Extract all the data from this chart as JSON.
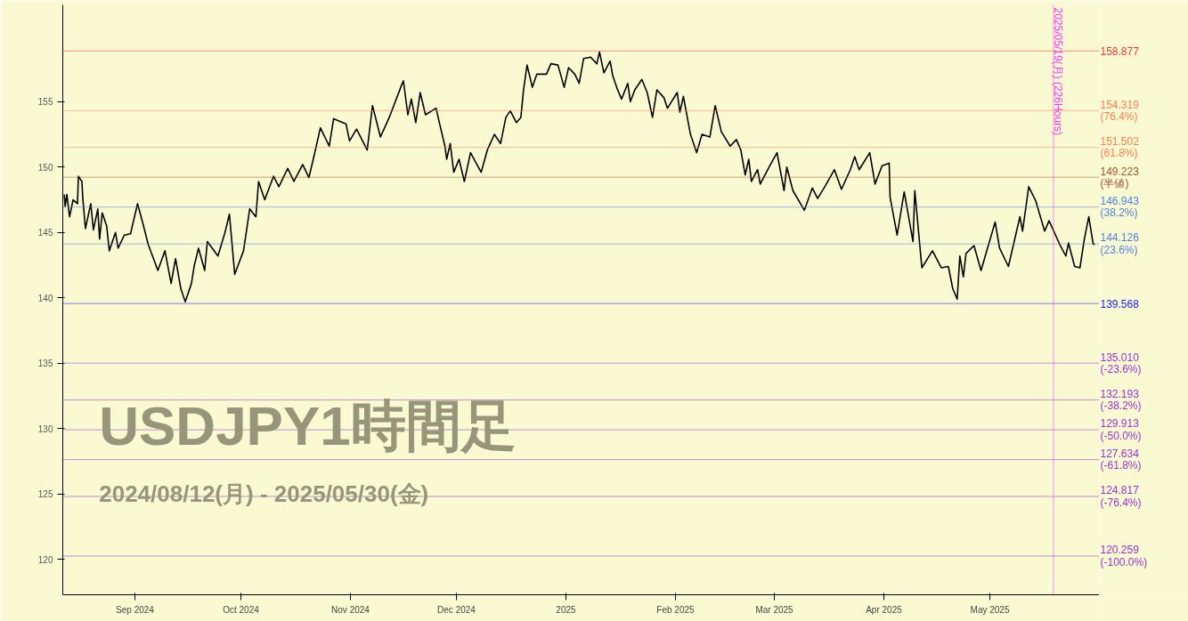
{
  "chart_data": {
    "type": "line",
    "title": "USDJPY1時間足",
    "subtitle": "2024/08/12(月) - 2025/05/30(金)",
    "xlim": [
      "2024-08-11T14:00",
      "2025-06-01T00:00"
    ],
    "ylim": [
      117.3,
      162.4
    ],
    "xticks": [
      {
        "value": "2024-09-01",
        "label": "Sep 2024"
      },
      {
        "value": "2024-10-01",
        "label": "Oct 2024"
      },
      {
        "value": "2024-11-01",
        "label": "Nov 2024"
      },
      {
        "value": "2024-12-01",
        "label": "Dec 2024"
      },
      {
        "value": "2025-01-01",
        "label": "2025"
      },
      {
        "value": "2025-02-01",
        "label": "Feb 2025"
      },
      {
        "value": "2025-03-01",
        "label": "Mar 2025"
      },
      {
        "value": "2025-04-01",
        "label": "Apr 2025"
      },
      {
        "value": "2025-05-01",
        "label": "May 2025"
      }
    ],
    "yticks": [
      120,
      125,
      130,
      135,
      140,
      145,
      150,
      155
    ],
    "x": [
      "2024-08-12T00:00",
      "2024-08-12T06:00",
      "2024-08-12T18:00",
      "2024-08-13T12:00",
      "2024-08-14T12:00",
      "2024-08-15T18:00",
      "2024-08-16T00:00",
      "2024-08-17T00:00",
      "2024-08-17T06:00",
      "2024-08-18T00:00",
      "2024-08-19T12:00",
      "2024-08-20T06:00",
      "2024-08-21T12:00",
      "2024-08-22T00:00",
      "2024-08-22T18:00",
      "2024-08-24T00:00",
      "2024-08-24T18:00",
      "2024-08-26T12:00",
      "2024-08-27T06:00",
      "2024-08-29T00:00",
      "2024-08-30T18:00",
      "2024-09-01T18:00",
      "2024-09-03T06:00",
      "2024-09-04T18:00",
      "2024-09-07T12:00",
      "2024-09-09T12:00",
      "2024-09-11T06:00",
      "2024-09-12T12:00",
      "2024-09-14T00:00",
      "2024-09-15T06:00",
      "2024-09-17T00:00",
      "2024-09-17T18:00",
      "2024-09-19T00:00",
      "2024-09-20T18:00",
      "2024-09-21T12:00",
      "2024-09-24T12:00",
      "2024-09-26T12:00",
      "2024-09-27T18:00",
      "2024-09-29T06:00",
      "2024-10-01T18:00",
      "2024-10-03T12:00",
      "2024-10-05T06:00",
      "2024-10-06T00:00",
      "2024-10-07T18:00",
      "2024-10-10T06:00",
      "2024-10-11T18:00",
      "2024-10-14T06:00",
      "2024-10-16T00:00",
      "2024-10-18T12:00",
      "2024-10-20T06:00",
      "2024-10-21T18:00",
      "2024-10-23T12:00",
      "2024-10-26T00:00",
      "2024-10-27T06:00",
      "2024-10-30T18:00",
      "2024-10-31T18:00",
      "2024-11-02T18:00",
      "2024-11-05T18:00",
      "2024-11-07T06:00",
      "2024-11-09T12:00",
      "2024-11-12T00:00",
      "2024-11-15T06:00",
      "2024-11-16T00:00",
      "2024-11-17T06:00",
      "2024-11-18T06:00",
      "2024-11-19T12:00",
      "2024-11-20T18:00",
      "2024-11-22T06:00",
      "2024-11-25T06:00",
      "2024-11-26T00:00",
      "2024-11-27T18:00",
      "2024-11-28T06:00",
      "2024-11-29T06:00",
      "2024-11-30T06:00",
      "2024-12-01T18:00",
      "2024-12-03T06:00",
      "2024-12-05T00:00",
      "2024-12-08T00:00",
      "2024-12-09T18:00",
      "2024-12-11T18:00",
      "2024-12-13T12:00",
      "2024-12-15T00:00",
      "2024-12-16T06:00",
      "2024-12-18T00:00",
      "2024-12-19T06:00",
      "2024-12-20T00:00",
      "2024-12-21T00:00",
      "2024-12-22T12:00",
      "2024-12-23T18:00",
      "2024-12-26T12:00",
      "2024-12-27T18:00",
      "2024-12-29T18:00",
      "2024-12-31T12:00",
      "2025-01-01T18:00",
      "2025-01-03T12:00",
      "2025-01-04T18:00",
      "2025-01-06T00:00",
      "2025-01-08T00:00",
      "2025-01-09T18:00",
      "2025-01-10T12:00",
      "2025-01-11T18:00",
      "2025-01-13T12:00",
      "2025-01-14T06:00",
      "2025-01-15T12:00",
      "2025-01-16T18:00",
      "2025-01-18T12:00",
      "2025-01-19T06:00",
      "2025-01-20T12:00",
      "2025-01-22T12:00",
      "2025-01-24T00:00",
      "2025-01-25T12:00",
      "2025-01-26T18:00",
      "2025-01-28T18:00",
      "2025-01-29T18:00",
      "2025-02-01T12:00",
      "2025-02-02T06:00",
      "2025-02-03T06:00",
      "2025-02-05T06:00",
      "2025-02-07T00:00",
      "2025-02-08T12:00",
      "2025-02-10T18:00",
      "2025-02-12T06:00",
      "2025-02-14T00:00",
      "2025-02-16T12:00",
      "2025-02-18T06:00",
      "2025-02-19T12:00",
      "2025-02-20T18:00",
      "2025-02-21T18:00",
      "2025-02-22T12:00",
      "2025-02-24T06:00",
      "2025-02-25T00:00",
      "2025-02-27T12:00",
      "2025-03-01T18:00",
      "2025-03-03T18:00",
      "2025-03-04T12:00",
      "2025-03-06T06:00",
      "2025-03-09T12:00",
      "2025-03-11T18:00",
      "2025-03-13T06:00",
      "2025-03-15T12:00",
      "2025-03-18T00:00",
      "2025-03-20T00:00",
      "2025-03-22T12:00",
      "2025-03-23T18:00",
      "2025-03-25T00:00",
      "2025-03-28T00:00",
      "2025-03-29T12:00",
      "2025-03-31T12:00",
      "2025-04-02T12:00",
      "2025-04-02T18:00",
      "2025-04-04T18:00",
      "2025-04-06T18:00",
      "2025-04-09T06:00",
      "2025-04-09T18:00",
      "2025-04-11T18:00",
      "2025-04-14T18:00",
      "2025-04-17T06:00",
      "2025-04-19T06:00",
      "2025-04-20T12:00",
      "2025-04-21T18:00",
      "2025-04-22T12:00",
      "2025-04-23T12:00",
      "2025-04-24T06:00",
      "2025-04-26T12:00",
      "2025-04-28T12:00",
      "2025-05-02T12:00",
      "2025-05-03T18:00",
      "2025-05-06T06:00",
      "2025-05-09T12:00",
      "2025-05-10T06:00",
      "2025-05-12T00:00",
      "2025-05-14T00:00",
      "2025-05-16T12:00",
      "2025-05-17T18:00",
      "2025-05-20T18:00",
      "2025-05-22T12:00",
      "2025-05-23T06:00",
      "2025-05-25T00:00",
      "2025-05-26T12:00",
      "2025-05-27T18:00",
      "2025-05-29T00:00",
      "2025-05-30T06:00",
      "2025-05-30T18:00"
    ],
    "series": [
      {
        "color": "#000000",
        "values": [
          147.9,
          147.0,
          147.9,
          146.2,
          147.5,
          147.2,
          149.3,
          148.9,
          147.6,
          145.3,
          147.2,
          145.2,
          146.8,
          144.5,
          146.5,
          145.5,
          143.6,
          145.0,
          143.8,
          144.8,
          144.9,
          147.2,
          145.7,
          144.1,
          142.1,
          143.6,
          141.1,
          143.0,
          140.7,
          139.7,
          141.1,
          142.4,
          143.8,
          142.1,
          144.3,
          143.2,
          145.0,
          146.4,
          141.8,
          143.6,
          146.8,
          146.2,
          148.9,
          147.5,
          149.3,
          148.5,
          149.9,
          148.9,
          150.2,
          149.2,
          150.9,
          153.0,
          151.6,
          153.7,
          153.3,
          152.0,
          152.9,
          151.3,
          154.7,
          152.3,
          153.8,
          156.1,
          156.6,
          154.0,
          155.2,
          153.4,
          155.7,
          154.0,
          154.5,
          153.6,
          151.6,
          150.6,
          151.8,
          149.6,
          150.6,
          148.9,
          151.1,
          149.6,
          151.3,
          152.5,
          151.8,
          153.8,
          154.3,
          153.4,
          153.8,
          155.9,
          157.8,
          156.1,
          157.1,
          157.1,
          157.9,
          157.8,
          156.1,
          157.6,
          157.1,
          156.4,
          158.3,
          158.4,
          157.9,
          158.8,
          157.2,
          158.1,
          157.0,
          156.0,
          155.2,
          156.4,
          155.0,
          155.9,
          156.7,
          155.7,
          153.8,
          155.9,
          155.3,
          154.5,
          155.7,
          154.2,
          155.4,
          152.5,
          151.1,
          152.5,
          152.3,
          154.7,
          152.7,
          151.6,
          152.1,
          151.3,
          149.4,
          150.6,
          148.9,
          149.8,
          148.7,
          150.0,
          151.1,
          148.2,
          150.0,
          148.2,
          146.7,
          148.4,
          147.6,
          148.6,
          149.8,
          148.3,
          149.8,
          150.8,
          149.8,
          151.1,
          148.7,
          150.1,
          150.3,
          147.7,
          144.8,
          148.1,
          144.3,
          148.2,
          142.3,
          143.6,
          142.3,
          142.4,
          140.7,
          139.9,
          143.2,
          141.6,
          143.4,
          144.0,
          142.1,
          145.8,
          143.8,
          142.4,
          146.2,
          145.1,
          148.5,
          147.4,
          145.1,
          145.9,
          144.1,
          143.2,
          144.2,
          142.4,
          142.3,
          144.5,
          146.2,
          144.1,
          144.1
        ]
      }
    ],
    "ref_lines": [
      {
        "axis": "y",
        "value": 158.877,
        "label": "158.877",
        "color": "#ff3333"
      },
      {
        "axis": "y",
        "value": 154.319,
        "label": "154.319\n(76.4%)",
        "color": "#ff7f50"
      },
      {
        "axis": "y",
        "value": 151.502,
        "label": "151.502\n(61.8%)",
        "color": "#ff7f50"
      },
      {
        "axis": "y",
        "value": 149.223,
        "label": "149.223\n(半値)",
        "color": "#a0522d"
      },
      {
        "axis": "y",
        "value": 146.943,
        "label": "146.943\n(38.2%)",
        "color": "#4f7fe0"
      },
      {
        "axis": "y",
        "value": 144.126,
        "label": "144.126\n(23.6%)",
        "color": "#4f7fe0"
      },
      {
        "axis": "y",
        "value": 139.568,
        "label": "139.568",
        "color": "#1a1aff"
      },
      {
        "axis": "y",
        "value": 135.01,
        "label": "135.010\n(-23.6%)",
        "color": "#9b30d0"
      },
      {
        "axis": "y",
        "value": 132.193,
        "label": "132.193\n(-38.2%)",
        "color": "#9b30d0"
      },
      {
        "axis": "y",
        "value": 129.913,
        "label": "129.913\n(-50.0%)",
        "color": "#9b30d0"
      },
      {
        "axis": "y",
        "value": 127.634,
        "label": "127.634\n(-61.8%)",
        "color": "#9b30d0"
      },
      {
        "axis": "y",
        "value": 124.817,
        "label": "124.817\n(-76.4%)",
        "color": "#9b30d0"
      },
      {
        "axis": "y",
        "value": 120.259,
        "label": "120.259\n(-100.0%)",
        "color": "#9b30d0"
      },
      {
        "axis": "x",
        "value": "2025-05-19T00:00",
        "label": "2025/05/19(月) (226Hours)",
        "color": "#ff33ff"
      }
    ]
  }
}
